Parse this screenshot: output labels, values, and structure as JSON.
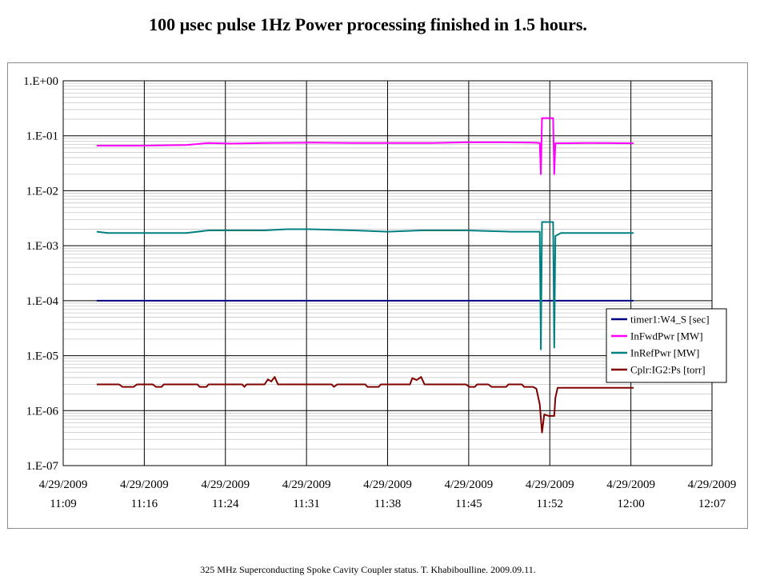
{
  "slide_title": "100 µsec pulse 1Hz  Power processing finished in 1.5 hours.",
  "footer_caption": "325 MHz Superconducting Spoke Cavity Coupler status. T. Khabiboulline. 2009.09.11.",
  "chart_data": {
    "type": "line",
    "title": "",
    "xlabel": "",
    "ylabel": "",
    "y_scale": "log",
    "ylim": [
      1e-07,
      1
    ],
    "xlim": [
      "2009-04-29 11:09",
      "2009-04-29 12:07"
    ],
    "grid": true,
    "legend_position": "right",
    "y_tick_labels": [
      "1.E+00",
      "1.E-01",
      "1.E-02",
      "1.E-03",
      "1.E-04",
      "1.E-05",
      "1.E-06",
      "1.E-07"
    ],
    "x_tick_labels": [
      {
        "date": "4/29/2009",
        "time": "11:09"
      },
      {
        "date": "4/29/2009",
        "time": "11:16"
      },
      {
        "date": "4/29/2009",
        "time": "11:24"
      },
      {
        "date": "4/29/2009",
        "time": "11:31"
      },
      {
        "date": "4/29/2009",
        "time": "11:38"
      },
      {
        "date": "4/29/2009",
        "time": "11:45"
      },
      {
        "date": "4/29/2009",
        "time": "11:52"
      },
      {
        "date": "4/29/2009",
        "time": "12:00"
      },
      {
        "date": "4/29/2009",
        "time": "12:07"
      }
    ],
    "series": [
      {
        "name": "timer1:W4_S [sec]",
        "color": "#000080",
        "points": [
          [
            "2009-04-29 11:12",
            0.0001
          ],
          [
            "2009-04-29 12:00",
            0.0001
          ]
        ]
      },
      {
        "name": "InFwdPwr [MW]",
        "color": "#ff00ff",
        "points": [
          [
            "2009-04-29 11:12",
            0.066
          ],
          [
            "2009-04-29 11:16",
            0.066
          ],
          [
            "2009-04-29 11:20",
            0.068
          ],
          [
            "2009-04-29 11:22",
            0.074
          ],
          [
            "2009-04-29 11:24",
            0.072
          ],
          [
            "2009-04-29 11:27",
            0.074
          ],
          [
            "2009-04-29 11:31",
            0.075
          ],
          [
            "2009-04-29 11:35",
            0.074
          ],
          [
            "2009-04-29 11:38",
            0.074
          ],
          [
            "2009-04-29 11:42",
            0.074
          ],
          [
            "2009-04-29 11:45",
            0.076
          ],
          [
            "2009-04-29 11:48",
            0.076
          ],
          [
            "2009-04-29 11:51",
            0.075
          ],
          [
            "2009-04-29 11:51.6",
            0.074
          ],
          [
            "2009-04-29 11:51.7",
            0.02
          ],
          [
            "2009-04-29 11:51.8",
            0.21
          ],
          [
            "2009-04-29 11:52.8",
            0.21
          ],
          [
            "2009-04-29 11:52.9",
            0.02
          ],
          [
            "2009-04-29 11:53",
            0.073
          ],
          [
            "2009-04-29 11:56",
            0.074
          ],
          [
            "2009-04-29 12:00",
            0.073
          ]
        ]
      },
      {
        "name": "InRefPwr [MW]",
        "color": "#008080",
        "points": [
          [
            "2009-04-29 11:12",
            0.0018
          ],
          [
            "2009-04-29 11:13",
            0.0017
          ],
          [
            "2009-04-29 11:16",
            0.0017
          ],
          [
            "2009-04-29 11:20",
            0.0017
          ],
          [
            "2009-04-29 11:22",
            0.0019
          ],
          [
            "2009-04-29 11:24",
            0.0019
          ],
          [
            "2009-04-29 11:27",
            0.0019
          ],
          [
            "2009-04-29 11:29",
            0.002
          ],
          [
            "2009-04-29 11:31",
            0.002
          ],
          [
            "2009-04-29 11:35",
            0.0019
          ],
          [
            "2009-04-29 11:38",
            0.0018
          ],
          [
            "2009-04-29 11:41",
            0.0019
          ],
          [
            "2009-04-29 11:45",
            0.0019
          ],
          [
            "2009-04-29 11:49",
            0.0018
          ],
          [
            "2009-04-29 11:51",
            0.0018
          ],
          [
            "2009-04-29 11:51.6",
            0.0018
          ],
          [
            "2009-04-29 11:51.7",
            1.3e-05
          ],
          [
            "2009-04-29 11:51.8",
            0.0027
          ],
          [
            "2009-04-29 11:52.8",
            0.0027
          ],
          [
            "2009-04-29 11:52.9",
            1.4e-05
          ],
          [
            "2009-04-29 11:53",
            0.0015
          ],
          [
            "2009-04-29 11:53.5",
            0.0017
          ],
          [
            "2009-04-29 12:00",
            0.0017
          ]
        ]
      },
      {
        "name": "Cplr:IG2:Ps [torr]",
        "color": "#800000",
        "points": [
          [
            "2009-04-29 11:12",
            3e-06
          ],
          [
            "2009-04-29 11:14",
            3e-06
          ],
          [
            "2009-04-29 11:14.3",
            2.7e-06
          ],
          [
            "2009-04-29 11:15.3",
            2.7e-06
          ],
          [
            "2009-04-29 11:15.6",
            3e-06
          ],
          [
            "2009-04-29 11:17",
            3e-06
          ],
          [
            "2009-04-29 11:17.3",
            2.7e-06
          ],
          [
            "2009-04-29 11:17.8",
            2.7e-06
          ],
          [
            "2009-04-29 11:18",
            3e-06
          ],
          [
            "2009-04-29 11:21",
            3e-06
          ],
          [
            "2009-04-29 11:21.2",
            2.7e-06
          ],
          [
            "2009-04-29 11:21.8",
            2.7e-06
          ],
          [
            "2009-04-29 11:22",
            3e-06
          ],
          [
            "2009-04-29 11:25",
            3e-06
          ],
          [
            "2009-04-29 11:25.2",
            2.7e-06
          ],
          [
            "2009-04-29 11:25.4",
            3e-06
          ],
          [
            "2009-04-29 11:27",
            3e-06
          ],
          [
            "2009-04-29 11:27.3",
            3.7e-06
          ],
          [
            "2009-04-29 11:27.6",
            3.4e-06
          ],
          [
            "2009-04-29 11:27.9",
            4.1e-06
          ],
          [
            "2009-04-29 11:28.2",
            3e-06
          ],
          [
            "2009-04-29 11:33",
            3e-06
          ],
          [
            "2009-04-29 11:33.2",
            2.7e-06
          ],
          [
            "2009-04-29 11:33.5",
            3e-06
          ],
          [
            "2009-04-29 11:36",
            3e-06
          ],
          [
            "2009-04-29 11:36.2",
            2.7e-06
          ],
          [
            "2009-04-29 11:37.2",
            2.7e-06
          ],
          [
            "2009-04-29 11:37.4",
            3e-06
          ],
          [
            "2009-04-29 11:40",
            3e-06
          ],
          [
            "2009-04-29 11:40.2",
            3.9e-06
          ],
          [
            "2009-04-29 11:40.6",
            3.6e-06
          ],
          [
            "2009-04-29 11:41",
            4.1e-06
          ],
          [
            "2009-04-29 11:41.3",
            3e-06
          ],
          [
            "2009-04-29 11:45",
            3e-06
          ],
          [
            "2009-04-29 11:45.3",
            2.7e-06
          ],
          [
            "2009-04-29 11:45.8",
            2.7e-06
          ],
          [
            "2009-04-29 11:46",
            3e-06
          ],
          [
            "2009-04-29 11:47",
            3e-06
          ],
          [
            "2009-04-29 11:47.3",
            2.7e-06
          ],
          [
            "2009-04-29 11:48.6",
            2.7e-06
          ],
          [
            "2009-04-29 11:48.8",
            3e-06
          ],
          [
            "2009-04-29 11:50",
            3e-06
          ],
          [
            "2009-04-29 11:50.2",
            2.7e-06
          ],
          [
            "2009-04-29 11:51",
            2.7e-06
          ],
          [
            "2009-04-29 11:51.3",
            2.5e-06
          ],
          [
            "2009-04-29 11:51.6",
            1.3e-06
          ],
          [
            "2009-04-29 11:51.8",
            4e-07
          ],
          [
            "2009-04-29 11:52",
            8.5e-07
          ],
          [
            "2009-04-29 11:52.4",
            8e-07
          ],
          [
            "2009-04-29 11:52.9",
            8e-07
          ],
          [
            "2009-04-29 11:53",
            1.7e-06
          ],
          [
            "2009-04-29 11:53.2",
            2.6e-06
          ],
          [
            "2009-04-29 12:00",
            2.6e-06
          ]
        ]
      }
    ]
  }
}
